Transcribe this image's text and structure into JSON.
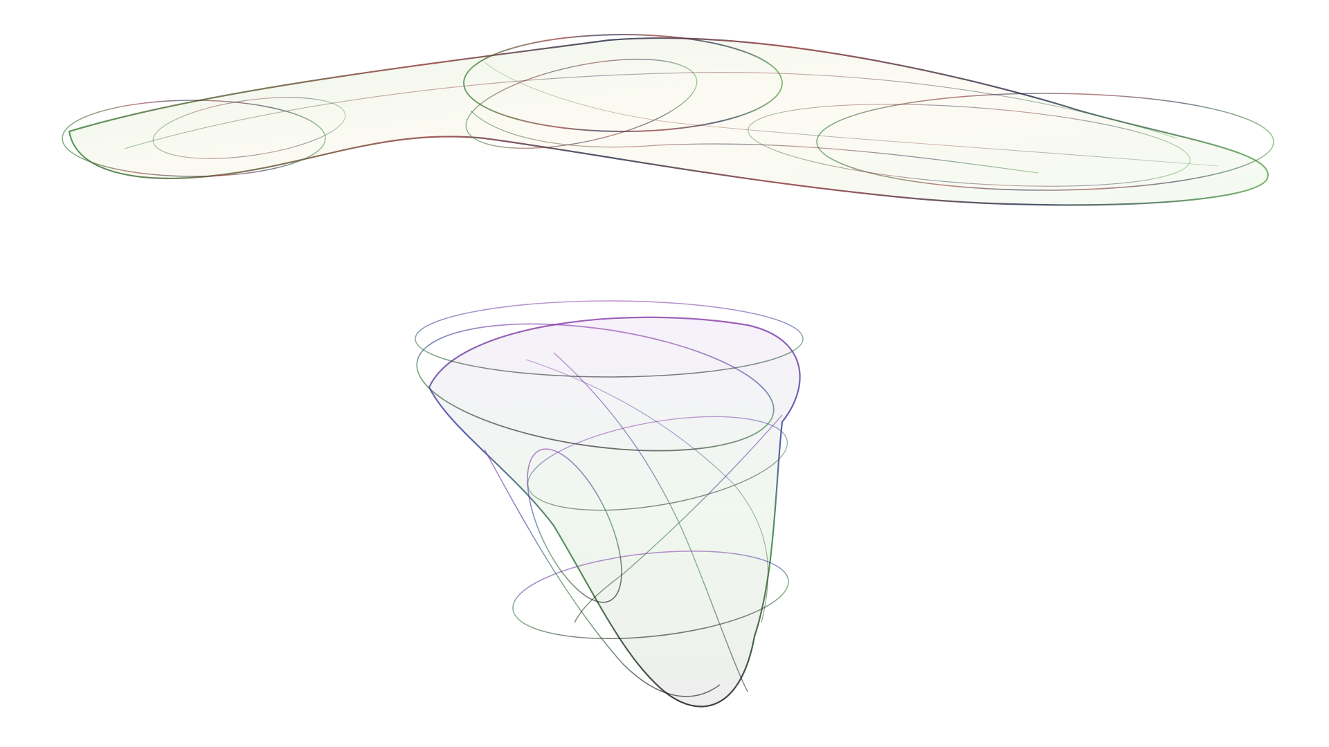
{
  "scene": {
    "description_type": "attractor-art",
    "background_color": "#ffffff",
    "upper_attractor": {
      "name": "upper-flat-attractor",
      "palette": [
        "#2e7d32",
        "#8d2f2f",
        "#1f2a4a",
        "#9a8a2a",
        "#7cc46a"
      ]
    },
    "lower_attractor": {
      "name": "lower-cone-attractor",
      "palette": [
        "#8a3aa8",
        "#2f3a9a",
        "#2e7d32",
        "#111111",
        "#5aa64a"
      ]
    }
  }
}
